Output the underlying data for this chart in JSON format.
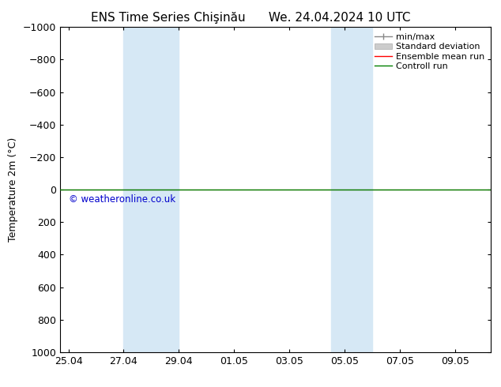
{
  "title_left": "ENS Time Series Chişinău",
  "title_right": "We. 24.04.2024 10 UTC",
  "ylabel": "Temperature 2m (°C)",
  "ylim_bottom": 1000,
  "ylim_top": -1000,
  "yticks": [
    -1000,
    -800,
    -600,
    -400,
    -200,
    0,
    200,
    400,
    600,
    800,
    1000
  ],
  "background_color": "#ffffff",
  "plot_bg_color": "#ffffff",
  "shade_color": "#d6e8f5",
  "shade_bands": [
    {
      "xstart": 2,
      "xend": 4
    },
    {
      "xstart": 9.5,
      "xend": 11
    }
  ],
  "x_tick_labels": [
    "25.04",
    "27.04",
    "29.04",
    "01.05",
    "03.05",
    "05.05",
    "07.05",
    "09.05"
  ],
  "x_tick_positions": [
    0,
    2,
    4,
    6,
    8,
    10,
    12,
    14
  ],
  "xmin": -0.3,
  "xmax": 15.3,
  "ensemble_mean_color": "#ff0000",
  "control_run_color": "#008000",
  "watermark": "© weatheronline.co.uk",
  "watermark_color": "#0000cc",
  "title_fontsize": 11,
  "axis_label_fontsize": 9,
  "tick_fontsize": 9,
  "legend_fontsize": 8
}
